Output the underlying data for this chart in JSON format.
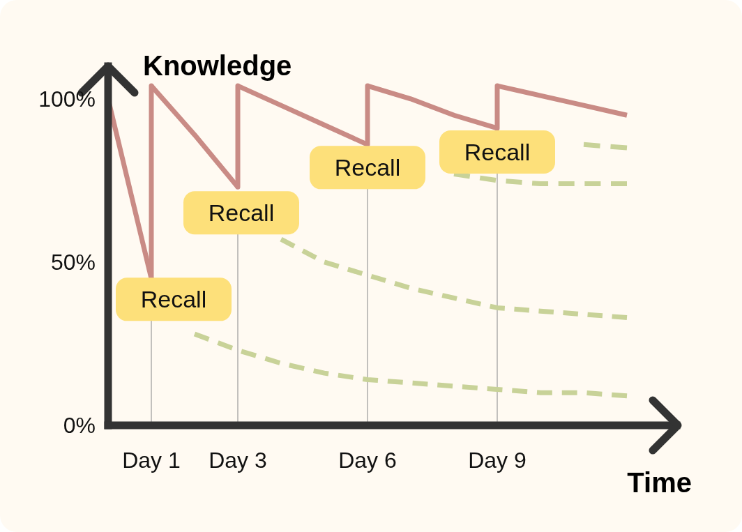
{
  "chart_data": {
    "type": "line",
    "xlabel": "Time",
    "ylabel": "Knowledge",
    "categories": [
      null,
      "Day 1",
      null,
      "Day 3",
      null,
      null,
      "Day 6",
      null,
      null,
      "Day 9",
      null,
      null,
      null
    ],
    "ylim": [
      0,
      110
    ],
    "yticks": [
      {
        "value": 0,
        "label": "0%"
      },
      {
        "value": 50,
        "label": "50%"
      },
      {
        "value": 100,
        "label": "100%"
      }
    ],
    "grid": "x",
    "marker": "none",
    "series": [
      {
        "color": "#c98b85",
        "line_style": "solid",
        "values": [
          100,
          45,
          null,
          null,
          null,
          null,
          null,
          null,
          null,
          null,
          null,
          null,
          null
        ]
      },
      {
        "color": "#c98b85",
        "line_style": "solid",
        "values": [
          null,
          104,
          89,
          73,
          null,
          null,
          null,
          null,
          null,
          null,
          null,
          null,
          null
        ]
      },
      {
        "color": "#c98b85",
        "line_style": "solid",
        "values": [
          null,
          null,
          null,
          104,
          98,
          92,
          86,
          null,
          null,
          null,
          null,
          null,
          null
        ]
      },
      {
        "color": "#c98b85",
        "line_style": "solid",
        "values": [
          null,
          null,
          null,
          null,
          null,
          null,
          104,
          100,
          95,
          91,
          null,
          null,
          null
        ]
      },
      {
        "color": "#c98b85",
        "line_style": "solid",
        "values": [
          null,
          null,
          null,
          null,
          null,
          null,
          null,
          null,
          null,
          104,
          101,
          98,
          95
        ]
      },
      {
        "color": "#c8d298",
        "line_style": "dashed",
        "values": [
          null,
          null,
          28,
          23,
          19,
          16,
          14,
          13,
          12,
          11,
          10,
          10,
          9
        ]
      },
      {
        "color": "#c8d298",
        "line_style": "dashed",
        "values": [
          null,
          null,
          null,
          null,
          57,
          50,
          46,
          42,
          39,
          36,
          35,
          34,
          33
        ]
      },
      {
        "color": "#c8d298",
        "line_style": "dashed",
        "values": [
          null,
          null,
          null,
          null,
          null,
          null,
          null,
          null,
          77,
          75,
          74,
          74,
          74
        ]
      },
      {
        "color": "#c8d298",
        "line_style": "dashed",
        "values": [
          null,
          null,
          null,
          null,
          null,
          null,
          null,
          null,
          null,
          null,
          null,
          86,
          85
        ]
      }
    ],
    "annotations": [
      "Recall",
      "Recall",
      "Recall",
      "Recall"
    ]
  }
}
